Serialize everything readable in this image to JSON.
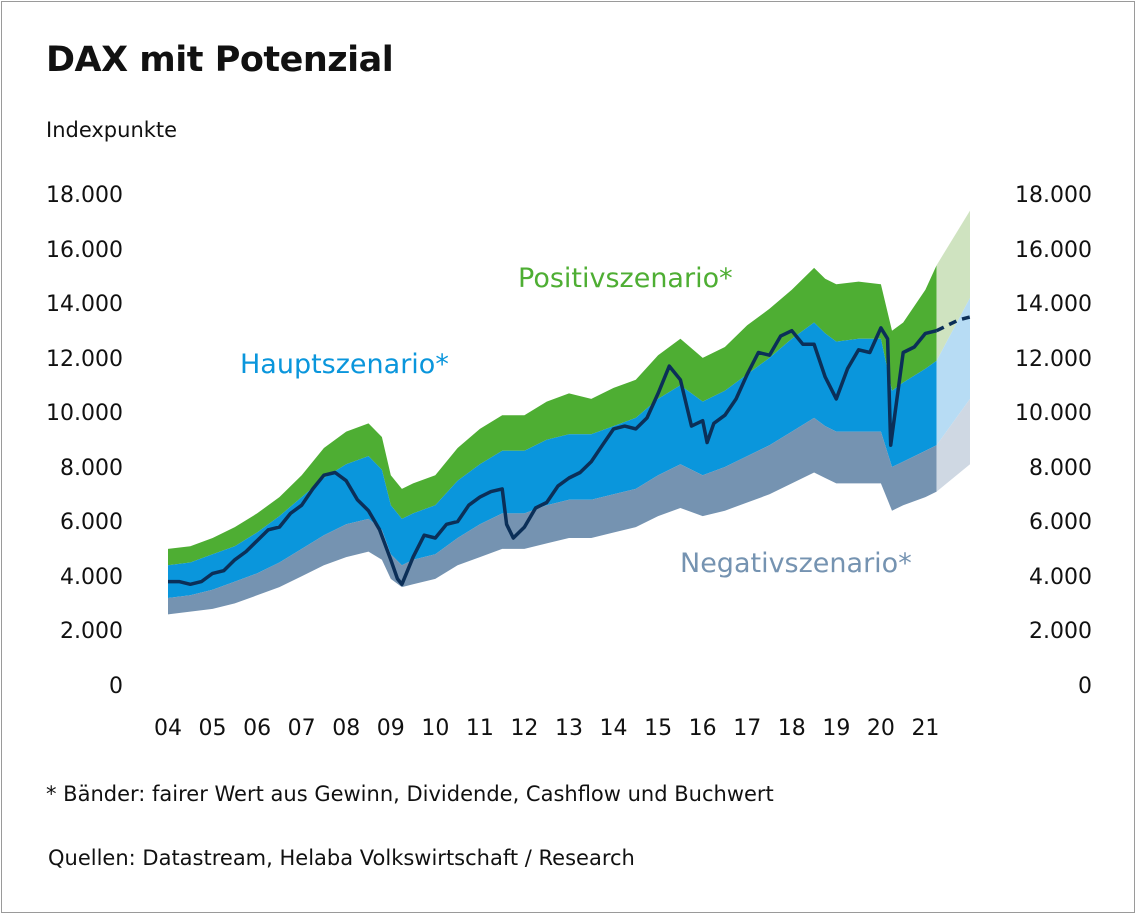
{
  "title": "DAX mit Potenzial",
  "unit_label": "Indexpunkte",
  "footnote": "* Bänder: fairer Wert aus Gewinn, Dividende, Cashflow und Buchwert",
  "source": "Quellen: Datastream, Helaba Volkswirtschaft / Research",
  "colors": {
    "positive": "#4eae33",
    "main": "#0a96dc",
    "negative": "#7593b1",
    "dax_line": "#0b2f58",
    "positive_forecast": "#cfe3c0",
    "main_forecast": "#b7dcf4",
    "negative_forecast": "#cfd8e3"
  },
  "chart_data": {
    "type": "area",
    "title": "DAX mit Potenzial",
    "ylabel": "Indexpunkte",
    "xlabel": "",
    "ylim": [
      0,
      18000
    ],
    "yticks": [
      0,
      2000,
      4000,
      6000,
      8000,
      10000,
      12000,
      14000,
      16000,
      18000
    ],
    "ytick_labels": [
      "0",
      "2.000",
      "4.000",
      "6.000",
      "8.000",
      "10.000",
      "12.000",
      "14.000",
      "16.000",
      "18.000"
    ],
    "xlim": [
      2004.0,
      2022.0
    ],
    "xticks": [
      2004,
      2005,
      2006,
      2007,
      2008,
      2009,
      2010,
      2011,
      2012,
      2013,
      2014,
      2015,
      2016,
      2017,
      2018,
      2019,
      2020,
      2021
    ],
    "xtick_labels": [
      "04",
      "05",
      "06",
      "07",
      "08",
      "09",
      "10",
      "11",
      "12",
      "13",
      "14",
      "15",
      "16",
      "17",
      "18",
      "19",
      "20",
      "21"
    ],
    "band_labels": {
      "positive": "Positivszenario*",
      "main": "Hauptszenario*",
      "negative": "Negativszenario*"
    },
    "bands_x": [
      2004.0,
      2004.5,
      2005.0,
      2005.5,
      2006.0,
      2006.5,
      2007.0,
      2007.5,
      2008.0,
      2008.5,
      2008.8,
      2009.0,
      2009.25,
      2009.5,
      2010.0,
      2010.5,
      2011.0,
      2011.5,
      2012.0,
      2012.5,
      2013.0,
      2013.5,
      2014.0,
      2014.5,
      2015.0,
      2015.5,
      2016.0,
      2016.5,
      2017.0,
      2017.5,
      2018.0,
      2018.5,
      2018.75,
      2019.0,
      2019.5,
      2020.0,
      2020.25,
      2020.5,
      2021.0,
      2021.25
    ],
    "band_upper": [
      5100,
      5200,
      5500,
      5900,
      6400,
      7000,
      7800,
      8800,
      9400,
      9700,
      9200,
      7800,
      7300,
      7500,
      7800,
      8800,
      9500,
      10000,
      10000,
      10500,
      10800,
      10600,
      11000,
      11300,
      12200,
      12800,
      12100,
      12500,
      13300,
      13900,
      14600,
      15400,
      15000,
      14800,
      14900,
      14800,
      13100,
      13400,
      14600,
      15500
    ],
    "band_mid_upper": [
      4500,
      4600,
      4900,
      5200,
      5700,
      6300,
      7000,
      7700,
      8200,
      8500,
      8000,
      6700,
      6200,
      6400,
      6700,
      7600,
      8200,
      8700,
      8700,
      9100,
      9300,
      9300,
      9600,
      9900,
      10600,
      11100,
      10500,
      10900,
      11500,
      12100,
      12800,
      13400,
      13000,
      12700,
      12800,
      12800,
      10900,
      11200,
      11700,
      12000
    ],
    "band_mid_lower": [
      3300,
      3400,
      3600,
      3900,
      4200,
      4600,
      5100,
      5600,
      6000,
      6200,
      5800,
      4900,
      4500,
      4700,
      4900,
      5500,
      6000,
      6400,
      6400,
      6700,
      6900,
      6900,
      7100,
      7300,
      7800,
      8200,
      7800,
      8100,
      8500,
      8900,
      9400,
      9900,
      9600,
      9400,
      9400,
      9400,
      8100,
      8300,
      8700,
      8900
    ],
    "band_lower": [
      2700,
      2800,
      2900,
      3100,
      3400,
      3700,
      4100,
      4500,
      4800,
      5000,
      4700,
      4000,
      3700,
      3800,
      4000,
      4500,
      4800,
      5100,
      5100,
      5300,
      5500,
      5500,
      5700,
      5900,
      6300,
      6600,
      6300,
      6500,
      6800,
      7100,
      7500,
      7900,
      7700,
      7500,
      7500,
      7500,
      6500,
      6700,
      7000,
      7200
    ],
    "forecast_x": [
      2021.25,
      2022.0
    ],
    "forecast_upper": [
      15500,
      17500
    ],
    "forecast_mid_upper": [
      12000,
      14300
    ],
    "forecast_mid_lower": [
      8900,
      10600
    ],
    "forecast_lower": [
      7200,
      8200
    ],
    "dax_x": [
      2004.0,
      2004.25,
      2004.5,
      2004.75,
      2005.0,
      2005.25,
      2005.5,
      2005.75,
      2006.0,
      2006.25,
      2006.5,
      2006.75,
      2007.0,
      2007.25,
      2007.5,
      2007.75,
      2008.0,
      2008.25,
      2008.5,
      2008.75,
      2009.0,
      2009.15,
      2009.25,
      2009.5,
      2009.75,
      2010.0,
      2010.25,
      2010.5,
      2010.75,
      2011.0,
      2011.25,
      2011.5,
      2011.6,
      2011.75,
      2012.0,
      2012.25,
      2012.5,
      2012.75,
      2013.0,
      2013.25,
      2013.5,
      2013.75,
      2014.0,
      2014.25,
      2014.5,
      2014.75,
      2015.0,
      2015.25,
      2015.5,
      2015.75,
      2016.0,
      2016.1,
      2016.25,
      2016.5,
      2016.75,
      2017.0,
      2017.25,
      2017.5,
      2017.75,
      2018.0,
      2018.25,
      2018.5,
      2018.75,
      2019.0,
      2019.25,
      2019.5,
      2019.75,
      2020.0,
      2020.15,
      2020.22,
      2020.5,
      2020.75,
      2021.0,
      2021.25
    ],
    "dax_y": [
      3900,
      3900,
      3800,
      3900,
      4200,
      4300,
      4700,
      5000,
      5400,
      5800,
      5900,
      6400,
      6700,
      7300,
      7800,
      7900,
      7600,
      6900,
      6500,
      5800,
      4700,
      4000,
      3800,
      4800,
      5600,
      5500,
      6000,
      6100,
      6700,
      7000,
      7200,
      7300,
      6000,
      5500,
      5900,
      6600,
      6800,
      7400,
      7700,
      7900,
      8300,
      8900,
      9500,
      9600,
      9500,
      9900,
      10800,
      11800,
      11300,
      9600,
      9800,
      9000,
      9700,
      10000,
      10600,
      11500,
      12300,
      12200,
      12900,
      13100,
      12600,
      12600,
      11400,
      10600,
      11700,
      12400,
      12300,
      13200,
      12800,
      8900,
      12300,
      12500,
      13000,
      13100
    ],
    "dax_forecast_x": [
      2021.25,
      2021.5,
      2021.75,
      2022.0
    ],
    "dax_forecast_y": [
      13100,
      13300,
      13500,
      13600
    ]
  }
}
